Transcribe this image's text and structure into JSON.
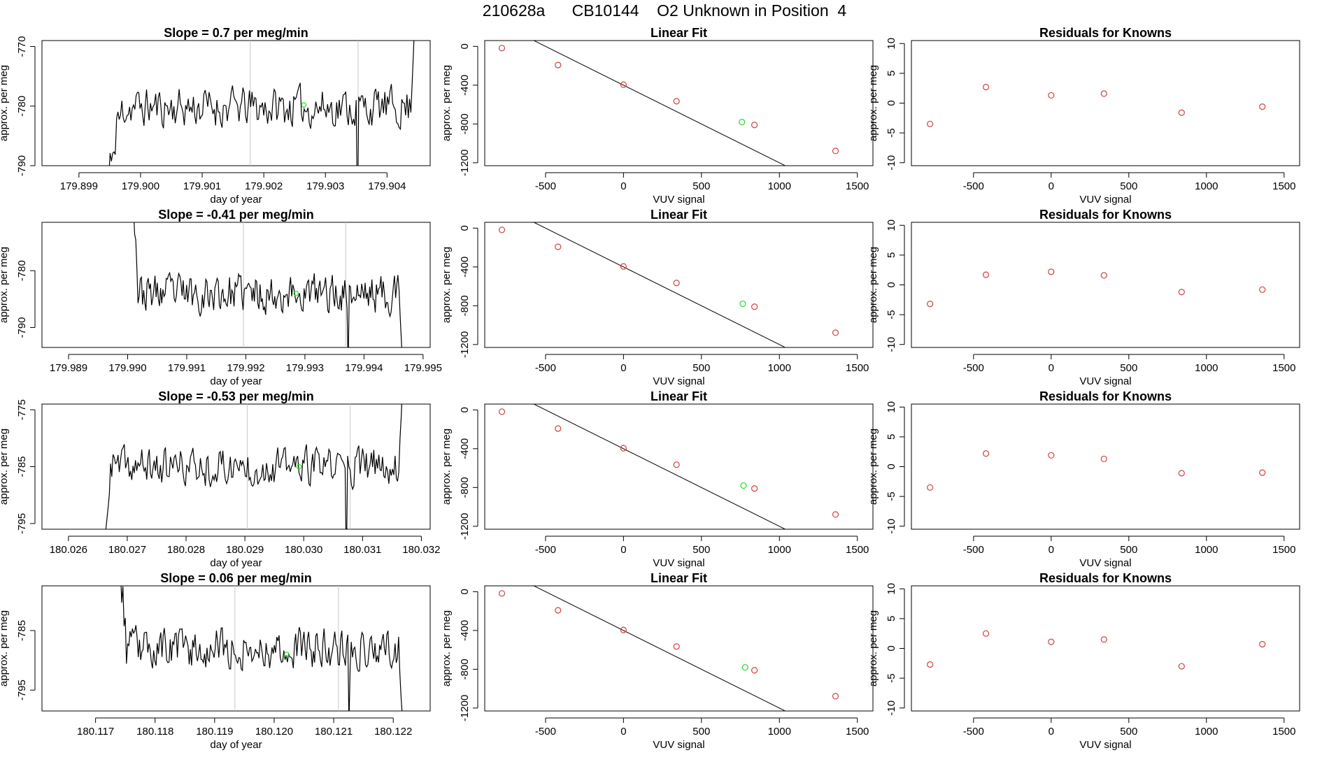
{
  "page_title": "210628a      CB10144    O2 Unknown in Position  4",
  "colors": {
    "trace": "#000000",
    "known_point": "#d04040",
    "unknown_point": "#22dd22",
    "vline": "#c8c8c8",
    "fit_line": "#000000"
  },
  "chart_data": [
    {
      "type": "line",
      "row": 0,
      "title": "Slope =  0.7  per meg/min",
      "xlabel": "day of year",
      "ylabel": "approx. per meg",
      "xlim": [
        179.8984,
        179.9047
      ],
      "ylim": [
        -790,
        -769
      ],
      "xticks": [
        179.899,
        179.9,
        179.901,
        179.902,
        179.903,
        179.904
      ],
      "xtick_labels": [
        "179.899",
        "179.900",
        "179.901",
        "179.902",
        "179.903",
        "179.904"
      ],
      "yticks": [
        -790,
        -780,
        -770
      ],
      "ytick_labels": [
        "-790",
        "-780",
        "-770"
      ],
      "vlines": [
        179.90178,
        179.90353
      ],
      "trace": {
        "x_start": 179.8994,
        "x_end": 179.90445,
        "level": -780.2,
        "seed": 11,
        "front": [
          -793,
          -788,
          -782
        ],
        "front_len": 14,
        "dip_frac": 0.815,
        "dip_y": -800,
        "end": [
          -776,
          -771,
          -765
        ]
      },
      "unknown_marker": {
        "x": 179.90265,
        "y": -779.8
      }
    },
    {
      "type": "scatter",
      "row": 0,
      "title": "Linear Fit",
      "xlabel": "VUV signal",
      "ylabel": "approx. per meg",
      "xlim": [
        -890,
        1600
      ],
      "ylim": [
        -1230,
        60
      ],
      "xticks": [
        -500,
        0,
        500,
        1000,
        1500
      ],
      "xtick_labels": [
        "-500",
        "0",
        "500",
        "1000",
        "1500"
      ],
      "yticks": [
        0,
        -400,
        -800,
        -1200
      ],
      "ytick_labels": [
        "0",
        "-400",
        "-800",
        "-1200"
      ],
      "fit": {
        "slope": -0.8,
        "intercept": -400,
        "x0": -800,
        "x1": 1545
      },
      "knowns": [
        [
          -780,
          -18
        ],
        [
          -420,
          -192
        ],
        [
          0,
          -395
        ],
        [
          340,
          -565
        ],
        [
          840,
          -810
        ],
        [
          1360,
          -1078
        ]
      ],
      "unknown": [
        760,
        -780
      ]
    },
    {
      "type": "scatter",
      "row": 0,
      "title": "Residuals for Knowns",
      "xlabel": "VUV signal",
      "ylabel": "approx. per meg",
      "xlim": [
        -900,
        1600
      ],
      "ylim": [
        -10.5,
        10.5
      ],
      "xticks": [
        -500,
        0,
        500,
        1000,
        1500
      ],
      "xtick_labels": [
        "-500",
        "0",
        "500",
        "1000",
        "1500"
      ],
      "yticks": [
        10,
        5,
        0,
        -5,
        -10
      ],
      "ytick_labels": [
        "10",
        "5",
        "0",
        "-5",
        "-10"
      ],
      "points": [
        [
          -780,
          -3.5
        ],
        [
          -420,
          2.7
        ],
        [
          0,
          1.3
        ],
        [
          340,
          1.6
        ],
        [
          840,
          -1.6
        ],
        [
          1360,
          -0.6
        ]
      ]
    },
    {
      "type": "line",
      "row": 1,
      "title": "Slope =  -0.41  per meg/min",
      "xlabel": "day of year",
      "ylabel": "approx. per meg",
      "xlim": [
        179.98855,
        179.99512
      ],
      "ylim": [
        -793.5,
        -771.5
      ],
      "xticks": [
        179.989,
        179.99,
        179.991,
        179.992,
        179.993,
        179.994,
        179.995
      ],
      "xtick_labels": [
        "179.989",
        "179.990",
        "179.991",
        "179.992",
        "179.993",
        "179.994",
        "179.995"
      ],
      "yticks": [
        -790,
        -780
      ],
      "ytick_labels": [
        "-790",
        "-780"
      ],
      "vlines": [
        179.99196,
        179.99369
      ],
      "trace": {
        "x_start": 179.99008,
        "x_end": 179.99465,
        "level": -784.0,
        "seed": 23,
        "front": [
          -768,
          -774,
          -779
        ],
        "front_len": 5,
        "dip_frac": 0.8,
        "dip_y": -797,
        "end": [
          -788,
          -792,
          -796
        ]
      },
      "unknown_marker": {
        "x": 179.99285,
        "y": -784
      }
    },
    {
      "type": "scatter",
      "row": 1,
      "title": "Linear Fit",
      "xlabel": "VUV signal",
      "ylabel": "approx. per meg",
      "xlim": [
        -890,
        1600
      ],
      "ylim": [
        -1230,
        60
      ],
      "xticks": [
        -500,
        0,
        500,
        1000,
        1500
      ],
      "xtick_labels": [
        "-500",
        "0",
        "500",
        "1000",
        "1500"
      ],
      "yticks": [
        0,
        -400,
        -800,
        -1200
      ],
      "ytick_labels": [
        "0",
        "-400",
        "-800",
        "-1200"
      ],
      "fit": {
        "slope": -0.8,
        "intercept": -400,
        "x0": -800,
        "x1": 1545
      },
      "knowns": [
        [
          -780,
          -18
        ],
        [
          -420,
          -192
        ],
        [
          0,
          -395
        ],
        [
          340,
          -565
        ],
        [
          840,
          -810
        ],
        [
          1360,
          -1078
        ]
      ],
      "unknown": [
        765,
        -780
      ]
    },
    {
      "type": "scatter",
      "row": 1,
      "title": "Residuals for Knowns",
      "xlabel": "VUV signal",
      "ylabel": "approx. per meg",
      "xlim": [
        -900,
        1600
      ],
      "ylim": [
        -10.5,
        10.5
      ],
      "xticks": [
        -500,
        0,
        500,
        1000,
        1500
      ],
      "xtick_labels": [
        "-500",
        "0",
        "500",
        "1000",
        "1500"
      ],
      "yticks": [
        10,
        5,
        0,
        -5,
        -10
      ],
      "ytick_labels": [
        "10",
        "5",
        "0",
        "-5",
        "-10"
      ],
      "points": [
        [
          -780,
          -3.2
        ],
        [
          -420,
          1.7
        ],
        [
          0,
          2.2
        ],
        [
          340,
          1.6
        ],
        [
          840,
          -1.2
        ],
        [
          1360,
          -0.8
        ]
      ]
    },
    {
      "type": "line",
      "row": 2,
      "title": "Slope =  -0.53  per meg/min",
      "xlabel": "day of year",
      "ylabel": "approx. per meg",
      "xlim": [
        180.02555,
        180.03215
      ],
      "ylim": [
        -796,
        -774
      ],
      "xticks": [
        180.026,
        180.027,
        180.028,
        180.029,
        180.03,
        180.031,
        180.032
      ],
      "xtick_labels": [
        "180.026",
        "180.027",
        "180.028",
        "180.029",
        "180.030",
        "180.031",
        "180.032"
      ],
      "yticks": [
        -795,
        -785,
        -775
      ],
      "ytick_labels": [
        "-795",
        "-785",
        "-775"
      ],
      "vlines": [
        180.02904,
        180.03079
      ],
      "trace": {
        "x_start": 180.02661,
        "x_end": 180.03168,
        "level": -785.0,
        "seed": 37,
        "front": [
          -798,
          -793,
          -789
        ],
        "front_len": 5,
        "dip_frac": 0.81,
        "dip_y": -803,
        "end": [
          -780,
          -776,
          -770
        ]
      },
      "unknown_marker": {
        "x": 180.02992,
        "y": -785
      }
    },
    {
      "type": "scatter",
      "row": 2,
      "title": "Linear Fit",
      "xlabel": "VUV signal",
      "ylabel": "approx. per meg",
      "xlim": [
        -890,
        1600
      ],
      "ylim": [
        -1230,
        60
      ],
      "xticks": [
        -500,
        0,
        500,
        1000,
        1500
      ],
      "xtick_labels": [
        "-500",
        "0",
        "500",
        "1000",
        "1500"
      ],
      "yticks": [
        0,
        -400,
        -800,
        -1200
      ],
      "ytick_labels": [
        "0",
        "-400",
        "-800",
        "-1200"
      ],
      "fit": {
        "slope": -0.8,
        "intercept": -400,
        "x0": -800,
        "x1": 1545
      },
      "knowns": [
        [
          -780,
          -18
        ],
        [
          -420,
          -192
        ],
        [
          0,
          -395
        ],
        [
          340,
          -565
        ],
        [
          840,
          -810
        ],
        [
          1360,
          -1078
        ]
      ],
      "unknown": [
        770,
        -780
      ]
    },
    {
      "type": "scatter",
      "row": 2,
      "title": "Residuals for Knowns",
      "xlabel": "VUV signal",
      "ylabel": "approx. per meg",
      "xlim": [
        -900,
        1600
      ],
      "ylim": [
        -10.5,
        10.5
      ],
      "xticks": [
        -500,
        0,
        500,
        1000,
        1500
      ],
      "xtick_labels": [
        "-500",
        "0",
        "500",
        "1000",
        "1500"
      ],
      "yticks": [
        10,
        5,
        0,
        -5,
        -10
      ],
      "ytick_labels": [
        "10",
        "5",
        "0",
        "-5",
        "-10"
      ],
      "points": [
        [
          -780,
          -3.5
        ],
        [
          -420,
          2.2
        ],
        [
          0,
          1.9
        ],
        [
          340,
          1.3
        ],
        [
          840,
          -1.1
        ],
        [
          1360,
          -1.0
        ]
      ]
    },
    {
      "type": "line",
      "row": 3,
      "title": "Slope =  0.06  per meg/min",
      "xlabel": "day of year",
      "ylabel": "approx. per meg",
      "xlim": [
        180.1161,
        180.12262
      ],
      "ylim": [
        -798.5,
        -777.5
      ],
      "xticks": [
        180.117,
        180.118,
        180.119,
        180.12,
        180.121,
        180.122
      ],
      "xtick_labels": [
        "180.117",
        "180.118",
        "180.119",
        "180.120",
        "180.121",
        "180.122"
      ],
      "yticks": [
        -795,
        -785
      ],
      "ytick_labels": [
        "-795",
        "-785"
      ],
      "vlines": [
        180.11934,
        180.12108
      ],
      "trace": {
        "x_start": 180.1174,
        "x_end": 180.12215,
        "level": -788.0,
        "seed": 53,
        "front": [
          -776,
          -779,
          -783
        ],
        "front_len": 6,
        "dip_frac": 0.81,
        "dip_y": -801,
        "end": [
          -792,
          -796,
          -799
        ]
      },
      "unknown_marker": {
        "x": 180.12021,
        "y": -789
      }
    },
    {
      "type": "scatter",
      "row": 3,
      "title": "Linear Fit",
      "xlabel": "VUV signal",
      "ylabel": "approx. per meg",
      "xlim": [
        -890,
        1600
      ],
      "ylim": [
        -1230,
        60
      ],
      "xticks": [
        -500,
        0,
        500,
        1000,
        1500
      ],
      "xtick_labels": [
        "-500",
        "0",
        "500",
        "1000",
        "1500"
      ],
      "yticks": [
        0,
        -400,
        -800,
        -1200
      ],
      "ytick_labels": [
        "0",
        "-400",
        "-800",
        "-1200"
      ],
      "fit": {
        "slope": -0.8,
        "intercept": -400,
        "x0": -800,
        "x1": 1545
      },
      "knowns": [
        [
          -780,
          -18
        ],
        [
          -420,
          -192
        ],
        [
          0,
          -395
        ],
        [
          340,
          -565
        ],
        [
          840,
          -810
        ],
        [
          1360,
          -1078
        ]
      ],
      "unknown": [
        780,
        -780
      ]
    },
    {
      "type": "scatter",
      "row": 3,
      "title": "Residuals for Knowns",
      "xlabel": "VUV signal",
      "ylabel": "approx. per meg",
      "xlim": [
        -900,
        1600
      ],
      "ylim": [
        -10.5,
        10.5
      ],
      "xticks": [
        -500,
        0,
        500,
        1000,
        1500
      ],
      "xtick_labels": [
        "-500",
        "0",
        "500",
        "1000",
        "1500"
      ],
      "yticks": [
        10,
        5,
        0,
        -5,
        -10
      ],
      "ytick_labels": [
        "10",
        "5",
        "0",
        "-5",
        "-10"
      ],
      "points": [
        [
          -780,
          -2.7
        ],
        [
          -420,
          2.5
        ],
        [
          0,
          1.1
        ],
        [
          340,
          1.5
        ],
        [
          840,
          -3.0
        ],
        [
          1360,
          0.7
        ]
      ]
    }
  ]
}
